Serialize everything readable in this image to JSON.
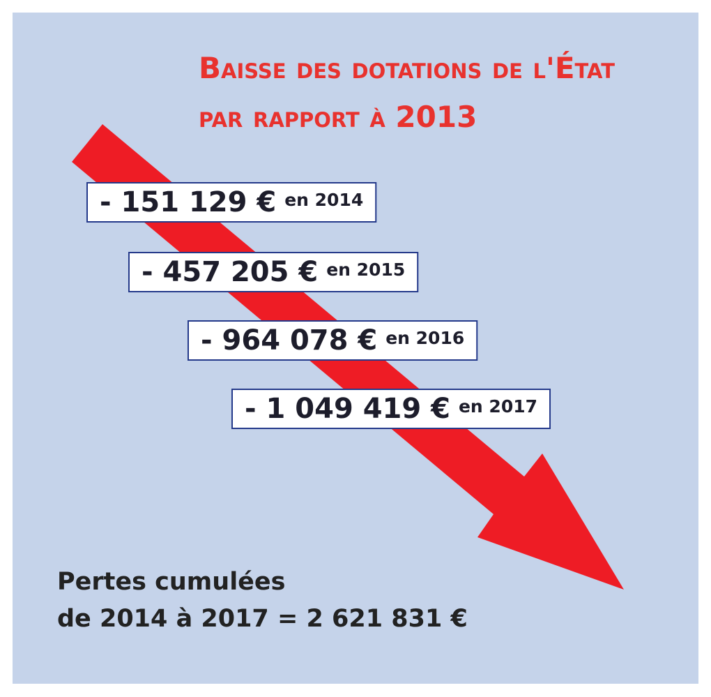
{
  "title": {
    "line1": "Baisse des dotations de l'État",
    "line2": "par rapport à 2013"
  },
  "items": [
    {
      "amount": "- 151 129 €",
      "label": "en 2014"
    },
    {
      "amount": "- 457 205 €",
      "label": "en 2015"
    },
    {
      "amount": "- 964 078 €",
      "label": "en 2016"
    },
    {
      "amount": "- 1 049 419 €",
      "label": "en 2017"
    }
  ],
  "total": {
    "line1": "Pertes cumulées",
    "line2": "de 2014 à 2017 = 2 621 831 €"
  }
}
